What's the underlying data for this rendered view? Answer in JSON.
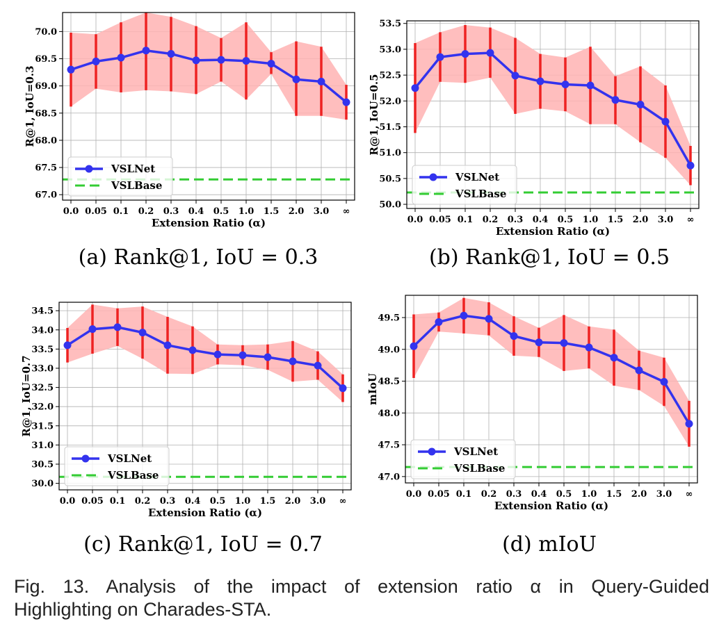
{
  "colors": {
    "series_line": "#3333ee",
    "error_bar": "#ee2222",
    "band_fill": "#ffb3b3",
    "baseline": "#33cc33",
    "grid": "#b0b0b0"
  },
  "caption": {
    "line1": "Fig. 13. Analysis of the impact of extension ratio α in Query-Guided",
    "line2": "Highlighting on Charades-STA."
  },
  "chart_data": [
    {
      "type": "line",
      "subcaption": "(a) Rank@1, IoU = 0.3",
      "xlabel": "Extension Ratio (α)",
      "ylabel": "R@1, IoU=0.3",
      "categories": [
        "0.0",
        "0.05",
        "0.1",
        "0.2",
        "0.3",
        "0.4",
        "0.5",
        "1.0",
        "1.5",
        "2.0",
        "3.0",
        "∞"
      ],
      "ylim": [
        66.9,
        70.35
      ],
      "yticks": [
        67.0,
        67.5,
        68.0,
        68.5,
        69.0,
        69.5,
        70.0
      ],
      "tick_decimals": 1,
      "grid": true,
      "legend_position": "bottom-left",
      "series": [
        {
          "name": "VSLNet",
          "values": [
            69.3,
            69.45,
            69.52,
            69.65,
            69.59,
            69.47,
            69.48,
            69.46,
            69.41,
            69.12,
            69.08,
            68.7
          ],
          "lower": [
            68.62,
            68.95,
            68.88,
            68.92,
            68.9,
            68.85,
            69.08,
            68.75,
            69.22,
            68.45,
            68.45,
            68.38
          ],
          "upper": [
            69.98,
            69.95,
            70.17,
            70.35,
            70.27,
            70.1,
            69.88,
            70.17,
            69.62,
            69.82,
            69.72,
            69.02
          ]
        },
        {
          "name": "VSLBase",
          "baseline": 67.28
        }
      ]
    },
    {
      "type": "line",
      "subcaption": "(b) Rank@1, IoU = 0.5",
      "xlabel": "Extension Ratio (α)",
      "ylabel": "R@1, IoU=0.5",
      "categories": [
        "0.0",
        "0.05",
        "0.1",
        "0.2",
        "0.3",
        "0.4",
        "0.5",
        "1.0",
        "1.5",
        "2.0",
        "3.0",
        "∞"
      ],
      "ylim": [
        49.92,
        53.55
      ],
      "yticks": [
        50.0,
        50.5,
        51.0,
        51.5,
        52.0,
        52.5,
        53.0,
        53.5
      ],
      "tick_decimals": 1,
      "grid": true,
      "legend_position": "bottom-left",
      "series": [
        {
          "name": "VSLNet",
          "values": [
            52.25,
            52.85,
            52.91,
            52.93,
            52.49,
            52.38,
            52.32,
            52.3,
            52.02,
            51.93,
            51.6,
            50.75
          ],
          "lower": [
            51.38,
            52.37,
            52.35,
            52.45,
            51.75,
            51.85,
            51.8,
            51.55,
            51.55,
            51.2,
            50.9,
            50.37
          ],
          "upper": [
            53.12,
            53.33,
            53.47,
            53.42,
            53.22,
            52.91,
            52.84,
            53.05,
            52.48,
            52.67,
            52.3,
            51.13
          ]
        },
        {
          "name": "VSLBase",
          "baseline": 50.23
        }
      ]
    },
    {
      "type": "line",
      "subcaption": "(c) Rank@1, IoU = 0.7",
      "xlabel": "Extension Ratio (α)",
      "ylabel": "R@1, IoU=0.7",
      "categories": [
        "0.0",
        "0.05",
        "0.1",
        "0.2",
        "0.3",
        "0.4",
        "0.5",
        "1.0",
        "1.5",
        "2.0",
        "3.0",
        "∞"
      ],
      "ylim": [
        29.83,
        34.72
      ],
      "yticks": [
        30.0,
        30.5,
        31.0,
        31.5,
        32.0,
        32.5,
        33.0,
        33.5,
        34.0,
        34.5
      ],
      "tick_decimals": 1,
      "grid": true,
      "legend_position": "bottom-left",
      "series": [
        {
          "name": "VSLNet",
          "values": [
            33.6,
            34.02,
            34.07,
            33.93,
            33.6,
            33.47,
            33.36,
            33.34,
            33.29,
            33.18,
            33.07,
            32.48
          ],
          "lower": [
            33.15,
            33.38,
            33.58,
            33.25,
            32.86,
            32.85,
            33.1,
            33.08,
            32.96,
            32.65,
            32.7,
            32.12
          ],
          "upper": [
            34.05,
            34.66,
            34.56,
            34.61,
            34.34,
            34.09,
            33.62,
            33.6,
            33.62,
            33.71,
            33.44,
            32.84
          ]
        },
        {
          "name": "VSLBase",
          "baseline": 30.17
        }
      ]
    },
    {
      "type": "line",
      "subcaption": "(d) mIoU",
      "xlabel": "Extension Ratio (α)",
      "ylabel": "mIoU",
      "categories": [
        "0.0",
        "0.05",
        "0.1",
        "0.2",
        "0.3",
        "0.4",
        "0.5",
        "1.0",
        "1.5",
        "2.0",
        "3.0",
        "∞"
      ],
      "ylim": [
        46.9,
        49.85
      ],
      "yticks": [
        47.0,
        47.5,
        48.0,
        48.5,
        49.0,
        49.5
      ],
      "tick_decimals": 1,
      "grid": true,
      "legend_position": "bottom-left",
      "series": [
        {
          "name": "VSLNet",
          "values": [
            49.05,
            49.43,
            49.53,
            49.48,
            49.21,
            49.11,
            49.1,
            49.03,
            48.87,
            48.67,
            48.49,
            47.83
          ],
          "lower": [
            48.55,
            49.28,
            49.25,
            49.22,
            48.9,
            48.88,
            48.66,
            48.7,
            48.43,
            48.36,
            48.11,
            47.47
          ],
          "upper": [
            49.55,
            49.58,
            49.81,
            49.74,
            49.52,
            49.34,
            49.54,
            49.36,
            49.31,
            48.98,
            48.87,
            48.19
          ]
        },
        {
          "name": "VSLBase",
          "baseline": 47.15
        }
      ]
    }
  ]
}
